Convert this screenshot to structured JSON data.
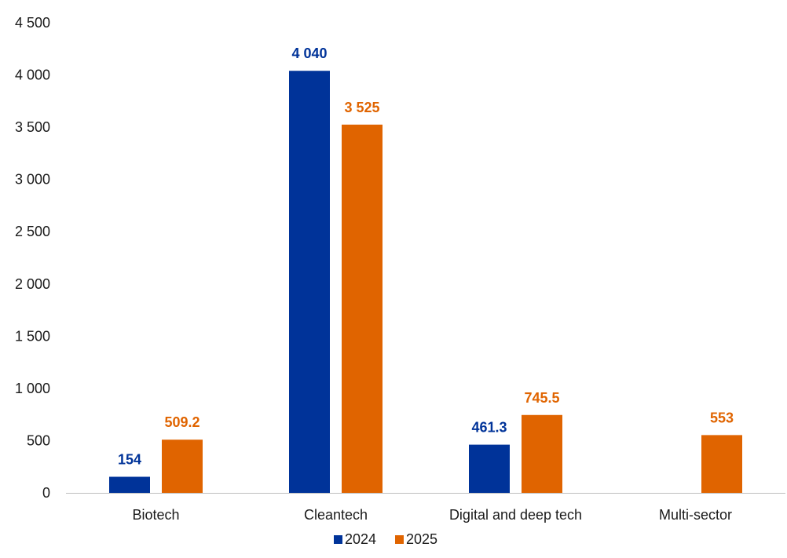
{
  "chart_data": {
    "type": "bar",
    "title": "",
    "xlabel": "",
    "ylabel": "",
    "categories": [
      "Biotech",
      "Cleantech",
      "Digital and deep tech",
      "Multi-sector"
    ],
    "series": [
      {
        "name": "2024",
        "color": "#003399",
        "values": [
          154,
          4040,
          461.3,
          null
        ],
        "labels": [
          "154",
          "4 040",
          "461.3",
          ""
        ]
      },
      {
        "name": "2025",
        "color": "#e06400",
        "values": [
          509.2,
          3525,
          745.5,
          553
        ],
        "labels": [
          "509.2",
          "3 525",
          "745.5",
          "553"
        ]
      }
    ],
    "ylim": [
      0,
      4500
    ],
    "yticks": [
      0,
      500,
      1000,
      1500,
      2000,
      2500,
      3000,
      3500,
      4000,
      4500
    ],
    "ytick_labels": [
      "0",
      "500",
      "1 000",
      "1 500",
      "2 000",
      "2 500",
      "3 000",
      "3 500",
      "4 000",
      "4 500"
    ],
    "grid": false,
    "legend_position": "bottom-center"
  }
}
